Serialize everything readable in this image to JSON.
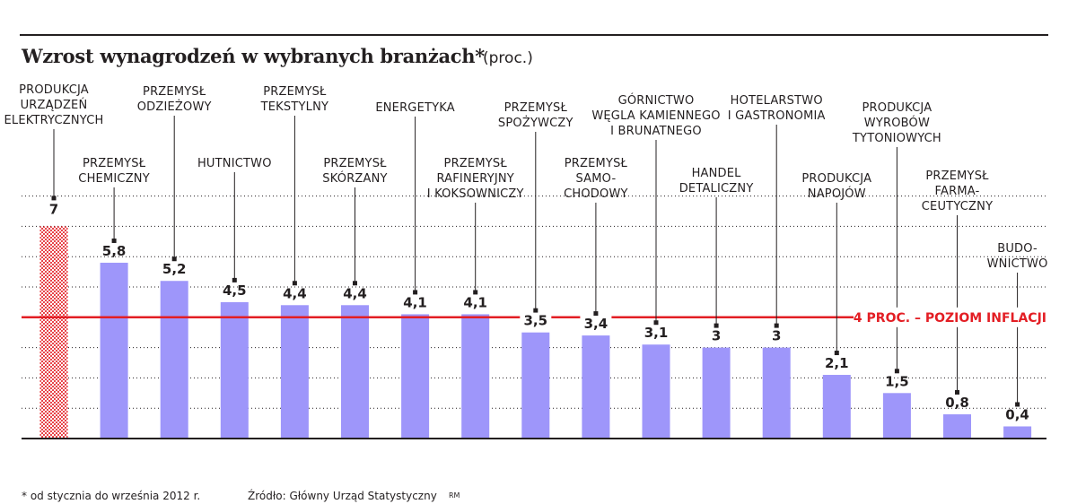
{
  "title": "Wzrost wynagrodzeń w wybranych branżach*",
  "unit": "(proc.)",
  "footnote": "* od stycznia do września 2012 r.",
  "source": "Źródło: Główny Urząd Statystyczny",
  "credit": "RM",
  "colors": {
    "bar": "#9e96fa",
    "highlight": "#e31e24",
    "text": "#231f20",
    "grid": "#231f20"
  },
  "chart_data": {
    "type": "bar",
    "categories": [
      [
        "PRODUKCJA",
        "URZĄDZEŃ",
        "ELEKTRYCZNYCH"
      ],
      [
        "PRZEMYSŁ",
        "CHEMICZNY"
      ],
      [
        "PRZEMYSŁ",
        "ODZIEŻOWY"
      ],
      [
        "HUTNICTWO"
      ],
      [
        "PRZEMYSŁ",
        "TEKSTYLNY"
      ],
      [
        "PRZEMYSŁ",
        "SKÓRZANY"
      ],
      [
        "ENERGETYKA"
      ],
      [
        "PRZEMYSŁ",
        "RAFINERYJNY",
        "I KOKSOWNICZY"
      ],
      [
        "PRZEMYSŁ",
        "SPOŻYWCZY"
      ],
      [
        "PRZEMYSŁ",
        "SAMO-",
        "CHODOWY"
      ],
      [
        "GÓRNICTWO",
        "WĘGLA KAMIENNEGO",
        "I BRUNATNEGO"
      ],
      [
        "HANDEL",
        "DETALICZNY"
      ],
      [
        "HOTELARSTWO",
        "I GASTRONOMIA"
      ],
      [
        "PRODUKCJA",
        "NAPOJÓW"
      ],
      [
        "PRODUKCJA",
        "WYROBÓW",
        "TYTONIOWYCH"
      ],
      [
        "PRZEMYSŁ",
        "FARMA-",
        "CEUTYCZNY"
      ],
      [
        "BUDO-",
        "WNICTWO"
      ]
    ],
    "values": [
      7,
      5.8,
      5.2,
      4.5,
      4.4,
      4.4,
      4.1,
      4.1,
      3.5,
      3.4,
      3.1,
      3,
      3,
      2.1,
      1.5,
      0.8,
      0.4
    ],
    "value_labels": [
      "7",
      "5,8",
      "5,2",
      "4,5",
      "4,4",
      "4,4",
      "4,1",
      "4,1",
      "3,5",
      "3,4",
      "3,1",
      "3",
      "3",
      "2,1",
      "1,5",
      "0,8",
      "0,4"
    ],
    "highlight_index": 0,
    "reference_line": {
      "value": 4,
      "label": "4 PROC. – POZIOM INFLACJI"
    },
    "ylim": [
      0,
      8
    ],
    "grid": true,
    "title": "Wzrost wynagrodzeń w wybranych branżach*",
    "xlabel": "",
    "ylabel": ""
  }
}
